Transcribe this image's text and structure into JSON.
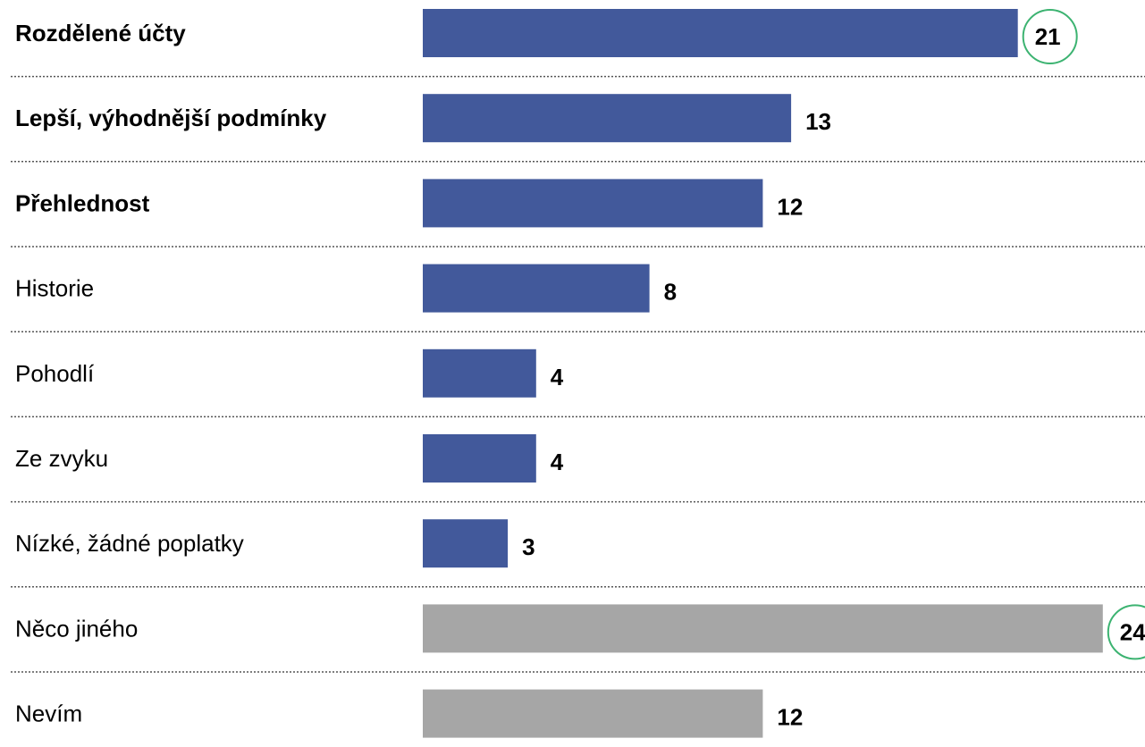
{
  "chart_data": {
    "type": "bar",
    "orientation": "horizontal",
    "categories": [
      "Rozdělené účty",
      "Lepší, výhodnější podmínky",
      "Přehlednost",
      "Historie",
      "Pohodlí",
      "Ze zvyku",
      "Nízké, žádné poplatky",
      "Něco jiného",
      "Nevím"
    ],
    "values": [
      21,
      13,
      12,
      8,
      4,
      4,
      3,
      24,
      12
    ],
    "bold_labels": [
      true,
      true,
      true,
      false,
      false,
      false,
      false,
      false,
      false
    ],
    "bar_colors": [
      "#42599b",
      "#42599b",
      "#42599b",
      "#42599b",
      "#42599b",
      "#42599b",
      "#42599b",
      "#a6a6a6",
      "#a6a6a6"
    ],
    "highlighted": [
      true,
      false,
      false,
      false,
      false,
      false,
      false,
      true,
      false
    ],
    "highlight_color": "#3cb371",
    "divider_color": "#555555",
    "xlim": [
      0,
      24
    ],
    "grid": false,
    "legend": false
  }
}
